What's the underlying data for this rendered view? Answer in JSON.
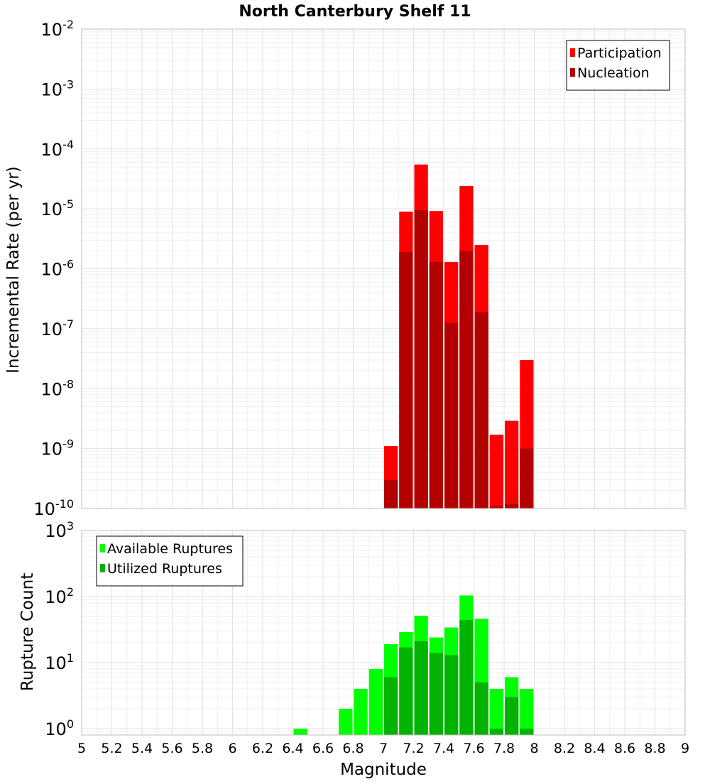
{
  "chart_data": [
    {
      "type": "bar",
      "title": "North Canterbury Shelf 11",
      "ylabel": "Incremental Rate (per yr)",
      "y_scale": "log",
      "ylim": [
        1e-10,
        0.01
      ],
      "y_ticks": [
        {
          "base": "10",
          "exp": "-10",
          "value": 1e-10
        },
        {
          "base": "10",
          "exp": "-9",
          "value": 1e-09
        },
        {
          "base": "10",
          "exp": "-8",
          "value": 1e-08
        },
        {
          "base": "10",
          "exp": "-7",
          "value": 1e-07
        },
        {
          "base": "10",
          "exp": "-6",
          "value": 1e-06
        },
        {
          "base": "10",
          "exp": "-5",
          "value": 1e-05
        },
        {
          "base": "10",
          "exp": "-4",
          "value": 0.0001
        },
        {
          "base": "10",
          "exp": "-3",
          "value": 0.001
        },
        {
          "base": "10",
          "exp": "-2",
          "value": 0.01
        }
      ],
      "legend_position": "top-right",
      "bin_width": 0.1,
      "series": [
        {
          "name": "Participation",
          "color": "#ff0000",
          "x": [
            7.05,
            7.15,
            7.25,
            7.35,
            7.45,
            7.55,
            7.65,
            7.75,
            7.85,
            7.95
          ],
          "values": [
            1.1e-09,
            9e-06,
            5.5e-05,
            9.2e-06,
            1.3e-06,
            2.4e-05,
            2.5e-06,
            1.7e-09,
            2.9e-09,
            3e-08
          ]
        },
        {
          "name": "Nucleation",
          "color": "#b30000",
          "x": [
            7.05,
            7.15,
            7.25,
            7.35,
            7.45,
            7.55,
            7.65,
            7.75,
            7.85,
            7.95
          ],
          "values": [
            3e-10,
            1.9e-06,
            9.5e-06,
            1.3e-06,
            1.25e-07,
            2e-06,
            1.9e-07,
            1.1e-10,
            1.2e-10,
            1e-09
          ]
        }
      ]
    },
    {
      "type": "bar",
      "xlabel": "Magnitude",
      "ylabel": "Rupture Count",
      "y_scale": "log",
      "ylim": [
        0.8,
        1000
      ],
      "xlim": [
        5,
        9
      ],
      "x_tick_labels": [
        "5",
        "5.2",
        "5.4",
        "5.6",
        "5.8",
        "6",
        "6.2",
        "6.4",
        "6.6",
        "6.8",
        "7",
        "7.2",
        "7.4",
        "7.6",
        "7.8",
        "8",
        "8.2",
        "8.4",
        "8.6",
        "8.8",
        "9"
      ],
      "y_ticks": [
        {
          "base": "10",
          "exp": "0",
          "value": 1
        },
        {
          "base": "10",
          "exp": "1",
          "value": 10
        },
        {
          "base": "10",
          "exp": "2",
          "value": 100
        },
        {
          "base": "10",
          "exp": "3",
          "value": 1000
        }
      ],
      "legend_position": "top-left",
      "bin_width": 0.1,
      "series": [
        {
          "name": "Available Ruptures",
          "color": "#00ff00",
          "x": [
            6.45,
            6.75,
            6.85,
            6.95,
            7.05,
            7.15,
            7.25,
            7.35,
            7.45,
            7.55,
            7.65,
            7.75,
            7.85,
            7.95
          ],
          "values": [
            1,
            2,
            4,
            8,
            19,
            29,
            51,
            24,
            34,
            104,
            46,
            4,
            6,
            4
          ]
        },
        {
          "name": "Utilized Ruptures",
          "color": "#00b300",
          "x": [
            7.05,
            7.15,
            7.25,
            7.35,
            7.45,
            7.55,
            7.65,
            7.75,
            7.85,
            7.95
          ],
          "values": [
            6,
            17,
            21,
            14,
            13,
            44,
            5,
            1,
            3,
            1
          ]
        }
      ]
    }
  ]
}
